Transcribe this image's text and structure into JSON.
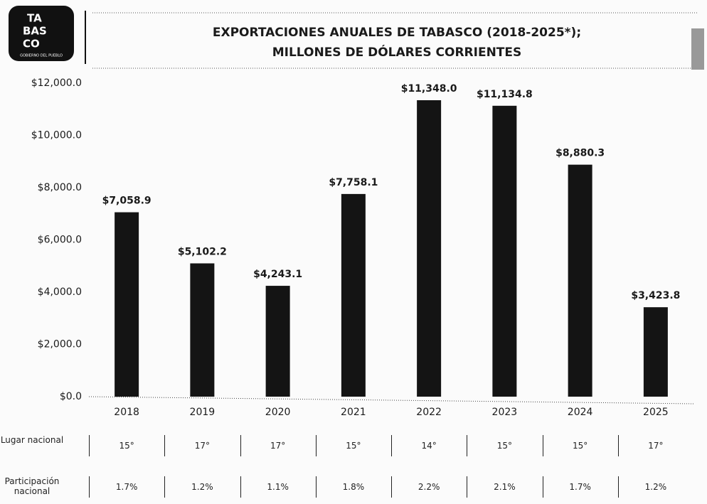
{
  "logo": [
    "TA",
    "BAS",
    "CO",
    "GOBIERNO DEL PUEBLO"
  ],
  "chart_data": {
    "type": "bar",
    "title": "EXPORTACIONES ANUALES DE TABASCO (2018-2025*);",
    "subtitle": "MILLONES DE DÓLARES CORRIENTES",
    "categories": [
      "2018",
      "2019",
      "2020",
      "2021",
      "2022",
      "2023",
      "2024",
      "2025"
    ],
    "values": [
      7058.9,
      5102.2,
      4243.1,
      7758.1,
      11348.0,
      11134.8,
      8880.3,
      3423.8
    ],
    "value_labels": [
      "$7,058.9",
      "$5,102.2",
      "$4,243.1",
      "$7,758.1",
      "$11,348.0",
      "$11,134.8",
      "$8,880.3",
      "$3,423.8"
    ],
    "color": "#141414",
    "ylim": [
      0,
      12000
    ],
    "yticks": [
      {
        "value": 0,
        "label": "$0.0"
      },
      {
        "value": 2000,
        "label": "$2,000.0"
      },
      {
        "value": 4000,
        "label": "$4,000.0"
      },
      {
        "value": 6000,
        "label": "$6,000.0"
      },
      {
        "value": 8000,
        "label": "$8,000.0"
      },
      {
        "value": 10000,
        "label": "$10,000.0"
      },
      {
        "value": 12000,
        "label": "$12,000.0"
      }
    ],
    "grid": false
  },
  "table": {
    "rows": [
      {
        "label": "Lugar nacional",
        "cells": [
          "15°",
          "17°",
          "17°",
          "15°",
          "14°",
          "15°",
          "15°",
          "17°"
        ]
      },
      {
        "label": "Participación nacional",
        "cells": [
          "1.7%",
          "1.2%",
          "1.1%",
          "1.8%",
          "2.2%",
          "2.1%",
          "1.7%",
          "1.2%"
        ]
      }
    ]
  }
}
